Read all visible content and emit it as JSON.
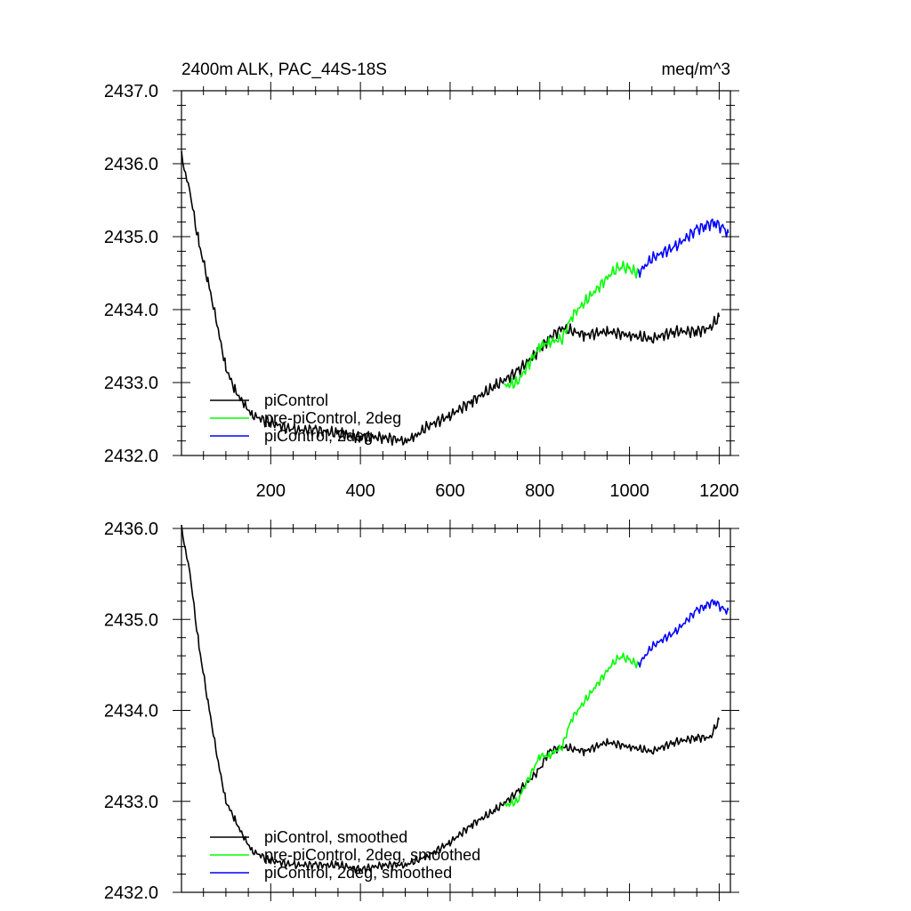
{
  "chart_data": [
    {
      "type": "line",
      "title_left": "2400m ALK, PAC_44S-18S",
      "title_right": "meq/m^3",
      "xlabel": "",
      "ylabel": "",
      "xlim": [
        1,
        1225
      ],
      "ylim": [
        2432.0,
        2437.0
      ],
      "x_ticks": [
        200,
        400,
        600,
        800,
        1000,
        1200
      ],
      "x_tick_labels": [
        "200",
        "400",
        "600",
        "800",
        "1000",
        "1200"
      ],
      "y_ticks": [
        2432,
        2433,
        2434,
        2435,
        2436,
        2437
      ],
      "y_tick_labels": [
        "2432.0",
        "2433.0",
        "2434.0",
        "2435.0",
        "2436.0",
        "2437.0"
      ],
      "legend": {
        "placement": "bottom-left",
        "entries": [
          "piControl",
          "pre-piControl, 2deg",
          "piControl, 2deg"
        ]
      },
      "series": [
        {
          "name": "piControl",
          "color": "#000000",
          "x": [
            1,
            20,
            40,
            60,
            80,
            100,
            120,
            140,
            160,
            200,
            250,
            300,
            350,
            400,
            450,
            500,
            520,
            550,
            600,
            650,
            700,
            750,
            800,
            820,
            850,
            900,
            950,
            1000,
            1050,
            1100,
            1150,
            1180,
            1200
          ],
          "values": [
            2436.1,
            2435.6,
            2434.9,
            2434.4,
            2433.8,
            2433.2,
            2432.9,
            2432.7,
            2432.55,
            2432.45,
            2432.35,
            2432.35,
            2432.3,
            2432.25,
            2432.25,
            2432.2,
            2432.25,
            2432.4,
            2432.55,
            2432.75,
            2432.95,
            2433.15,
            2433.45,
            2433.6,
            2433.75,
            2433.65,
            2433.7,
            2433.65,
            2433.6,
            2433.7,
            2433.7,
            2433.75,
            2433.9
          ]
        },
        {
          "name": "pre-piControl, 2deg",
          "color": "#00ff00",
          "x": [
            720,
            750,
            780,
            800,
            820,
            850,
            870,
            900,
            930,
            960,
            980,
            1000,
            1020
          ],
          "values": [
            2432.95,
            2433.0,
            2433.3,
            2433.5,
            2433.55,
            2433.6,
            2433.9,
            2434.1,
            2434.3,
            2434.5,
            2434.6,
            2434.55,
            2434.5
          ]
        },
        {
          "name": "piControl, 2deg",
          "color": "#0000ff",
          "x": [
            1020,
            1050,
            1080,
            1100,
            1130,
            1150,
            1170,
            1190,
            1210,
            1220
          ],
          "values": [
            2434.5,
            2434.7,
            2434.8,
            2434.85,
            2435.0,
            2435.1,
            2435.15,
            2435.2,
            2435.1,
            2435.05
          ]
        }
      ]
    },
    {
      "type": "line",
      "title_left": "",
      "title_right": "",
      "xlabel": "",
      "ylabel": "",
      "xlim": [
        1,
        1225
      ],
      "ylim": [
        2432.0,
        2436.0
      ],
      "x_ticks": [
        200,
        400,
        600,
        800,
        1000,
        1200
      ],
      "x_tick_labels": [],
      "y_ticks": [
        2432,
        2433,
        2434,
        2435,
        2436
      ],
      "y_tick_labels": [
        "2432.0",
        "2433.0",
        "2434.0",
        "2435.0",
        "2436.0"
      ],
      "legend": {
        "placement": "bottom-left",
        "entries": [
          "piControl, smoothed",
          "pre-piControl, 2deg, smoothed",
          "piControl, 2deg, smoothed"
        ]
      },
      "series": [
        {
          "name": "piControl, smoothed",
          "color": "#000000",
          "x": [
            1,
            20,
            40,
            60,
            80,
            100,
            120,
            140,
            160,
            200,
            250,
            300,
            350,
            400,
            450,
            500,
            550,
            600,
            650,
            700,
            750,
            800,
            820,
            850,
            900,
            950,
            1000,
            1050,
            1100,
            1150,
            1180,
            1200
          ],
          "values": [
            2436.0,
            2435.5,
            2434.7,
            2434.1,
            2433.5,
            2433.0,
            2432.8,
            2432.6,
            2432.45,
            2432.35,
            2432.3,
            2432.3,
            2432.3,
            2432.25,
            2432.3,
            2432.3,
            2432.4,
            2432.55,
            2432.75,
            2432.9,
            2433.1,
            2433.35,
            2433.55,
            2433.6,
            2433.55,
            2433.65,
            2433.6,
            2433.55,
            2433.65,
            2433.7,
            2433.7,
            2433.9
          ]
        },
        {
          "name": "pre-piControl, 2deg, smoothed",
          "color": "#00ff00",
          "x": [
            720,
            750,
            780,
            800,
            820,
            850,
            870,
            900,
            930,
            960,
            980,
            1000,
            1020
          ],
          "values": [
            2432.95,
            2433.0,
            2433.3,
            2433.5,
            2433.5,
            2433.6,
            2433.9,
            2434.1,
            2434.3,
            2434.5,
            2434.6,
            2434.55,
            2434.5
          ]
        },
        {
          "name": "piControl, 2deg, smoothed",
          "color": "#0000ff",
          "x": [
            1020,
            1050,
            1080,
            1100,
            1130,
            1150,
            1170,
            1190,
            1210,
            1220
          ],
          "values": [
            2434.5,
            2434.7,
            2434.8,
            2434.85,
            2435.0,
            2435.1,
            2435.15,
            2435.2,
            2435.1,
            2435.1
          ]
        }
      ]
    }
  ]
}
